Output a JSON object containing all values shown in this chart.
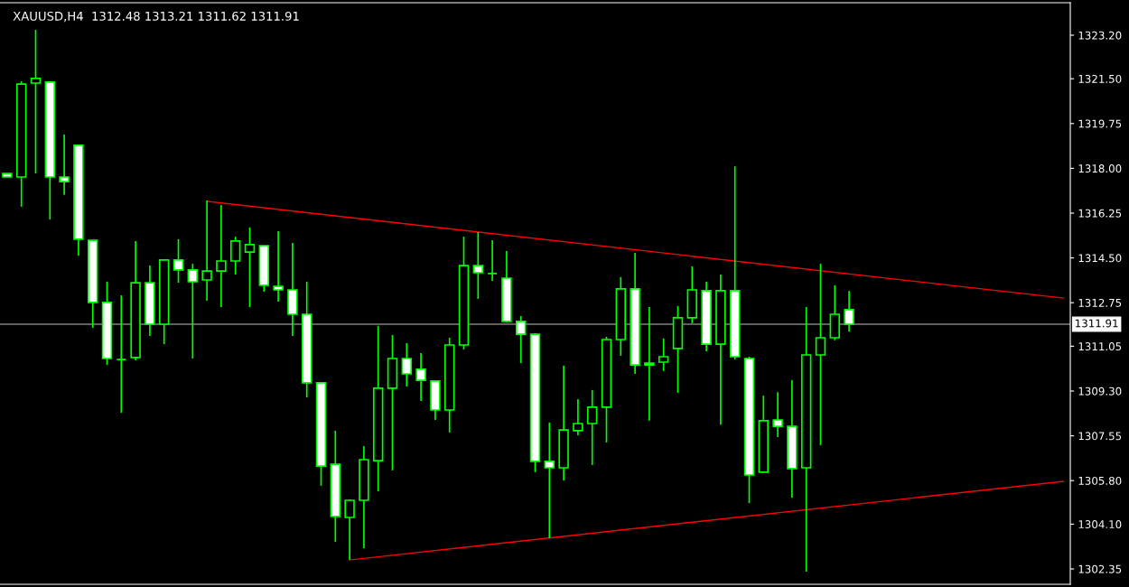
{
  "chart_data": {
    "type": "candlestick",
    "title": "XAUUSD,H4  1312.48 1313.21 1311.62 1311.91",
    "color": "#00ff00",
    "categories": [
      null,
      null,
      null,
      null,
      null,
      null,
      null,
      null,
      null,
      null,
      null,
      null,
      null,
      null,
      null,
      null,
      null,
      null,
      null,
      null,
      null,
      null,
      null,
      null,
      null,
      null,
      null,
      null,
      null,
      null,
      null,
      null,
      null,
      null,
      null,
      null,
      null,
      null,
      null,
      null,
      null,
      null,
      null,
      null,
      null,
      null,
      null,
      null,
      null,
      null,
      null,
      null,
      null,
      null,
      null,
      null,
      null,
      null,
      null,
      null,
      null,
      null,
      null,
      null,
      null,
      null,
      null,
      null,
      null,
      null,
      null,
      null,
      null,
      null,
      null
    ],
    "ohlc": [
      [
        1317.8,
        1317.8,
        1317.66,
        1317.66
      ],
      [
        1317.66,
        1321.4,
        1316.5,
        1321.29
      ],
      [
        1321.33,
        1323.41,
        1317.8,
        1321.51
      ],
      [
        1321.37,
        1321.37,
        1316.0,
        1317.66
      ],
      [
        1317.66,
        1319.32,
        1316.96,
        1317.48
      ],
      [
        1318.9,
        1318.93,
        1314.59,
        1315.23
      ],
      [
        1315.19,
        1315.19,
        1311.77,
        1312.76
      ],
      [
        1312.76,
        1313.57,
        1310.32,
        1310.57
      ],
      [
        1310.53,
        1313.04,
        1308.45,
        1310.53
      ],
      [
        1310.61,
        1315.16,
        1310.5,
        1313.53
      ],
      [
        1313.53,
        1314.2,
        1311.45,
        1311.91
      ],
      [
        1311.91,
        1314.45,
        1311.13,
        1314.42
      ],
      [
        1314.42,
        1315.23,
        1313.53,
        1314.03
      ],
      [
        1314.03,
        1314.27,
        1310.57,
        1313.57
      ],
      [
        1313.64,
        1316.74,
        1312.83,
        1313.99
      ],
      [
        1313.99,
        1316.57,
        1312.58,
        1314.38
      ],
      [
        1314.38,
        1315.33,
        1313.85,
        1315.16
      ],
      [
        1314.73,
        1315.69,
        1312.58,
        1315.02
      ],
      [
        1314.98,
        1314.98,
        1313.18,
        1313.43
      ],
      [
        1313.39,
        1315.54,
        1312.79,
        1313.25
      ],
      [
        1313.25,
        1315.09,
        1311.45,
        1312.3
      ],
      [
        1312.3,
        1313.57,
        1309.05,
        1309.62
      ],
      [
        1309.62,
        1309.62,
        1305.6,
        1306.37
      ],
      [
        1306.44,
        1307.75,
        1303.41,
        1304.4
      ],
      [
        1304.36,
        1305.07,
        1302.7,
        1305.03
      ],
      [
        1305.03,
        1307.15,
        1303.16,
        1306.62
      ],
      [
        1306.58,
        1311.84,
        1305.38,
        1309.41
      ],
      [
        1309.41,
        1311.49,
        1306.2,
        1310.57
      ],
      [
        1310.57,
        1311.17,
        1309.48,
        1309.97
      ],
      [
        1310.15,
        1310.78,
        1308.91,
        1309.72
      ],
      [
        1309.69,
        1309.72,
        1308.17,
        1308.56
      ],
      [
        1308.56,
        1311.38,
        1307.68,
        1311.1
      ],
      [
        1311.1,
        1315.33,
        1310.92,
        1314.2
      ],
      [
        1314.2,
        1315.51,
        1312.9,
        1313.92
      ],
      [
        1313.89,
        1315.19,
        1313.6,
        1313.89
      ],
      [
        1313.71,
        1314.77,
        1311.98,
        1312.02
      ],
      [
        1312.02,
        1312.23,
        1310.39,
        1311.52
      ],
      [
        1311.52,
        1311.56,
        1306.13,
        1306.55
      ],
      [
        1306.55,
        1308.07,
        1303.55,
        1306.3
      ],
      [
        1306.3,
        1310.29,
        1305.81,
        1307.78
      ],
      [
        1307.75,
        1308.98,
        1307.57,
        1308.03
      ],
      [
        1308.03,
        1309.34,
        1306.41,
        1308.67
      ],
      [
        1308.67,
        1311.42,
        1307.29,
        1311.31
      ],
      [
        1311.31,
        1313.75,
        1310.68,
        1313.29
      ],
      [
        1313.29,
        1314.7,
        1309.97,
        1310.32
      ],
      [
        1310.39,
        1312.58,
        1308.14,
        1310.32
      ],
      [
        1310.43,
        1311.35,
        1310.08,
        1310.64
      ],
      [
        1310.96,
        1312.62,
        1309.23,
        1312.16
      ],
      [
        1312.16,
        1314.17,
        1311.95,
        1313.25
      ],
      [
        1313.22,
        1313.57,
        1310.85,
        1311.13
      ],
      [
        1311.13,
        1313.85,
        1307.99,
        1313.22
      ],
      [
        1313.22,
        1318.08,
        1310.53,
        1310.64
      ],
      [
        1310.57,
        1310.64,
        1304.92,
        1306.02
      ],
      [
        1306.13,
        1309.12,
        1306.09,
        1308.14
      ],
      [
        1308.17,
        1309.26,
        1307.5,
        1307.92
      ],
      [
        1307.92,
        1309.72,
        1305.14,
        1306.27
      ],
      [
        1306.3,
        1312.58,
        1302.24,
        1310.71
      ],
      [
        1310.71,
        1314.27,
        1307.18,
        1311.38
      ],
      [
        1311.38,
        1313.43,
        1311.28,
        1312.3
      ],
      [
        1312.48,
        1313.21,
        1311.62,
        1311.91
      ],
      null,
      null,
      null,
      null,
      null,
      null,
      null,
      null,
      null,
      null,
      null,
      null,
      null,
      null,
      null
    ],
    "colors": [
      "#ffffff",
      "#000000",
      "#000000",
      "#ffffff",
      "#ffffff",
      "#ffffff",
      "#ffffff",
      "#ffffff",
      "#00ff00",
      "#000000",
      "#ffffff",
      "#000000",
      "#ffffff",
      "#ffffff",
      "#000000",
      "#000000",
      "#000000",
      "#000000",
      "#ffffff",
      "#ffffff",
      "#ffffff",
      "#ffffff",
      "#ffffff",
      "#ffffff",
      "#000000",
      "#000000",
      "#000000",
      "#000000",
      "#ffffff",
      "#ffffff",
      "#ffffff",
      "#000000",
      "#000000",
      "#ffffff",
      "#00ff00",
      "#ffffff",
      "#ffffff",
      "#ffffff",
      "#ffffff",
      "#000000",
      "#000000",
      "#000000",
      "#000000",
      "#000000",
      "#ffffff",
      "#ffffff",
      "#000000",
      "#000000",
      "#000000",
      "#ffffff",
      "#000000",
      "#ffffff",
      "#ffffff",
      "#000000",
      "#ffffff",
      "#ffffff",
      "#000000",
      "#000000",
      "#000000",
      "#ffffff",
      null,
      null,
      null,
      null,
      null,
      null,
      null,
      null,
      null,
      null,
      null,
      null,
      null,
      null,
      null
    ],
    "series": [
      {
        "type": "line",
        "color": "#ff0000",
        "values": [
          null,
          null,
          null,
          null,
          null,
          null,
          null,
          null,
          null,
          null,
          null,
          null,
          null,
          null,
          1316.71,
          null,
          null,
          null,
          null,
          null,
          null,
          null,
          null,
          null,
          null,
          null,
          null,
          null,
          null,
          null,
          null,
          null,
          null,
          null,
          null,
          null,
          null,
          null,
          null,
          null,
          null,
          null,
          null,
          null,
          null,
          null,
          null,
          null,
          null,
          null,
          null,
          null,
          null,
          null,
          null,
          null,
          null,
          null,
          null,
          null,
          null,
          null,
          null,
          null,
          null,
          null,
          null,
          null,
          null,
          null,
          null,
          null,
          null,
          null,
          1312.93
        ]
      },
      {
        "type": "line",
        "color": "#ff0000",
        "values": [
          null,
          null,
          null,
          null,
          null,
          null,
          null,
          null,
          null,
          null,
          null,
          null,
          null,
          null,
          null,
          null,
          null,
          null,
          null,
          null,
          null,
          null,
          null,
          null,
          1302.7,
          null,
          null,
          null,
          null,
          null,
          null,
          null,
          null,
          null,
          null,
          null,
          null,
          null,
          null,
          null,
          null,
          null,
          null,
          null,
          null,
          null,
          null,
          null,
          null,
          null,
          null,
          null,
          null,
          null,
          null,
          null,
          null,
          null,
          null,
          null,
          null,
          null,
          null,
          null,
          null,
          null,
          null,
          null,
          null,
          null,
          null,
          null,
          null,
          null,
          1305.77
        ]
      }
    ],
    "ref_lines": [
      {
        "axis": "y",
        "value": 1311.91,
        "label": "1311.91",
        "color": "#808080"
      }
    ],
    "ylim": [
      1301.75,
      1324.47
    ],
    "yticks": [
      {
        "value": 1323.2,
        "label": "1323.20"
      },
      {
        "value": 1321.5,
        "label": "1321.50"
      },
      {
        "value": 1319.75,
        "label": "1319.75"
      },
      {
        "value": 1318,
        "label": "1318.00"
      },
      {
        "value": 1316.25,
        "label": "1316.25"
      },
      {
        "value": 1314.5,
        "label": "1314.50"
      },
      {
        "value": 1312.75,
        "label": "1312.75"
      },
      {
        "value": 1311.05,
        "label": "1311.05"
      },
      {
        "value": 1309.3,
        "label": "1309.30"
      },
      {
        "value": 1307.55,
        "label": "1307.55"
      },
      {
        "value": 1305.8,
        "label": "1305.80"
      },
      {
        "value": 1304.1,
        "label": "1304.10"
      },
      {
        "value": 1302.35,
        "label": "1302.35"
      }
    ],
    "grid": false
  }
}
